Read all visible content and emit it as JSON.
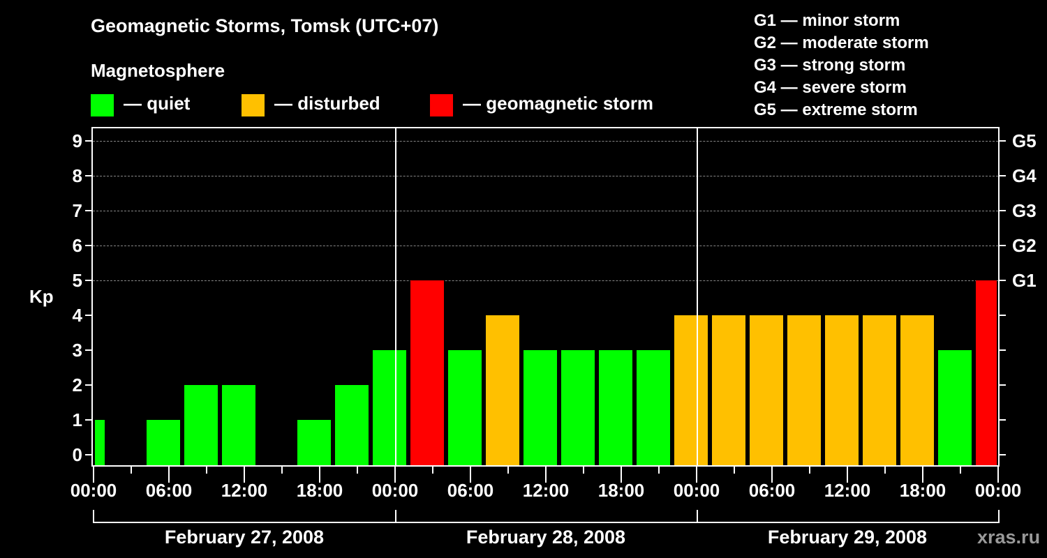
{
  "title": "Geomagnetic Storms, Tomsk (UTC+07)",
  "subtitle": "Magnetosphere",
  "legend": [
    {
      "label": "— quiet",
      "color": "#00ff00"
    },
    {
      "label": "— disturbed",
      "color": "#ffc000"
    },
    {
      "label": "— geomagnetic storm",
      "color": "#ff0000"
    }
  ],
  "g_scale": [
    "G1 — minor storm",
    "G2 — moderate storm",
    "G3 — strong storm",
    "G4 — severe storm",
    "G5 — extreme storm"
  ],
  "y_axis": {
    "label": "Kp",
    "ticks": [
      "0",
      "1",
      "2",
      "3",
      "4",
      "5",
      "6",
      "7",
      "8",
      "9"
    ]
  },
  "y_axis_right": {
    "ticks": [
      "G1",
      "G2",
      "G3",
      "G4",
      "G5"
    ]
  },
  "x_axis": {
    "ticks": [
      "00:00",
      "06:00",
      "12:00",
      "18:00",
      "00:00",
      "06:00",
      "12:00",
      "18:00",
      "00:00",
      "06:00",
      "12:00",
      "18:00",
      "00:00"
    ]
  },
  "dates": [
    "February 27, 2008",
    "February 28, 2008",
    "February 29, 2008"
  ],
  "credit": "xras.ru",
  "chart_data": {
    "type": "bar",
    "title": "Geomagnetic Storms, Tomsk (UTC+07)",
    "xlabel": "",
    "ylabel": "Kp",
    "ylim": [
      0,
      9
    ],
    "grid": true,
    "bin_hours": 3,
    "categories": [
      "Feb27 00-03",
      "Feb27 03-06",
      "Feb27 06-09",
      "Feb27 09-12",
      "Feb27 12-15",
      "Feb27 15-18",
      "Feb27 18-21",
      "Feb27 21-24",
      "Feb28 00-03",
      "Feb28 03-06",
      "Feb28 06-09",
      "Feb28 09-12",
      "Feb28 12-15",
      "Feb28 15-18",
      "Feb28 18-21",
      "Feb28 21-24",
      "Feb29 00-03",
      "Feb29 03-06",
      "Feb29 06-09",
      "Feb29 09-12",
      "Feb29 12-15",
      "Feb29 15-18",
      "Feb29 18-21",
      "Feb29 21-24",
      "Mar01 00-03"
    ],
    "values": [
      1,
      0,
      1,
      2,
      2,
      0,
      1,
      2,
      3,
      5,
      3,
      4,
      3,
      3,
      3,
      3,
      4,
      4,
      4,
      4,
      4,
      4,
      4,
      3,
      5
    ],
    "status": [
      "quiet",
      "quiet",
      "quiet",
      "quiet",
      "quiet",
      "quiet",
      "quiet",
      "quiet",
      "quiet",
      "storm",
      "quiet",
      "disturbed",
      "quiet",
      "quiet",
      "quiet",
      "quiet",
      "disturbed",
      "disturbed",
      "disturbed",
      "disturbed",
      "disturbed",
      "disturbed",
      "disturbed",
      "quiet",
      "storm"
    ],
    "colors": {
      "quiet": "#00ff00",
      "disturbed": "#ffc000",
      "storm": "#ff0000"
    },
    "right_axis": {
      "G1": 5,
      "G2": 6,
      "G3": 7,
      "G4": 8,
      "G5": 9
    }
  }
}
